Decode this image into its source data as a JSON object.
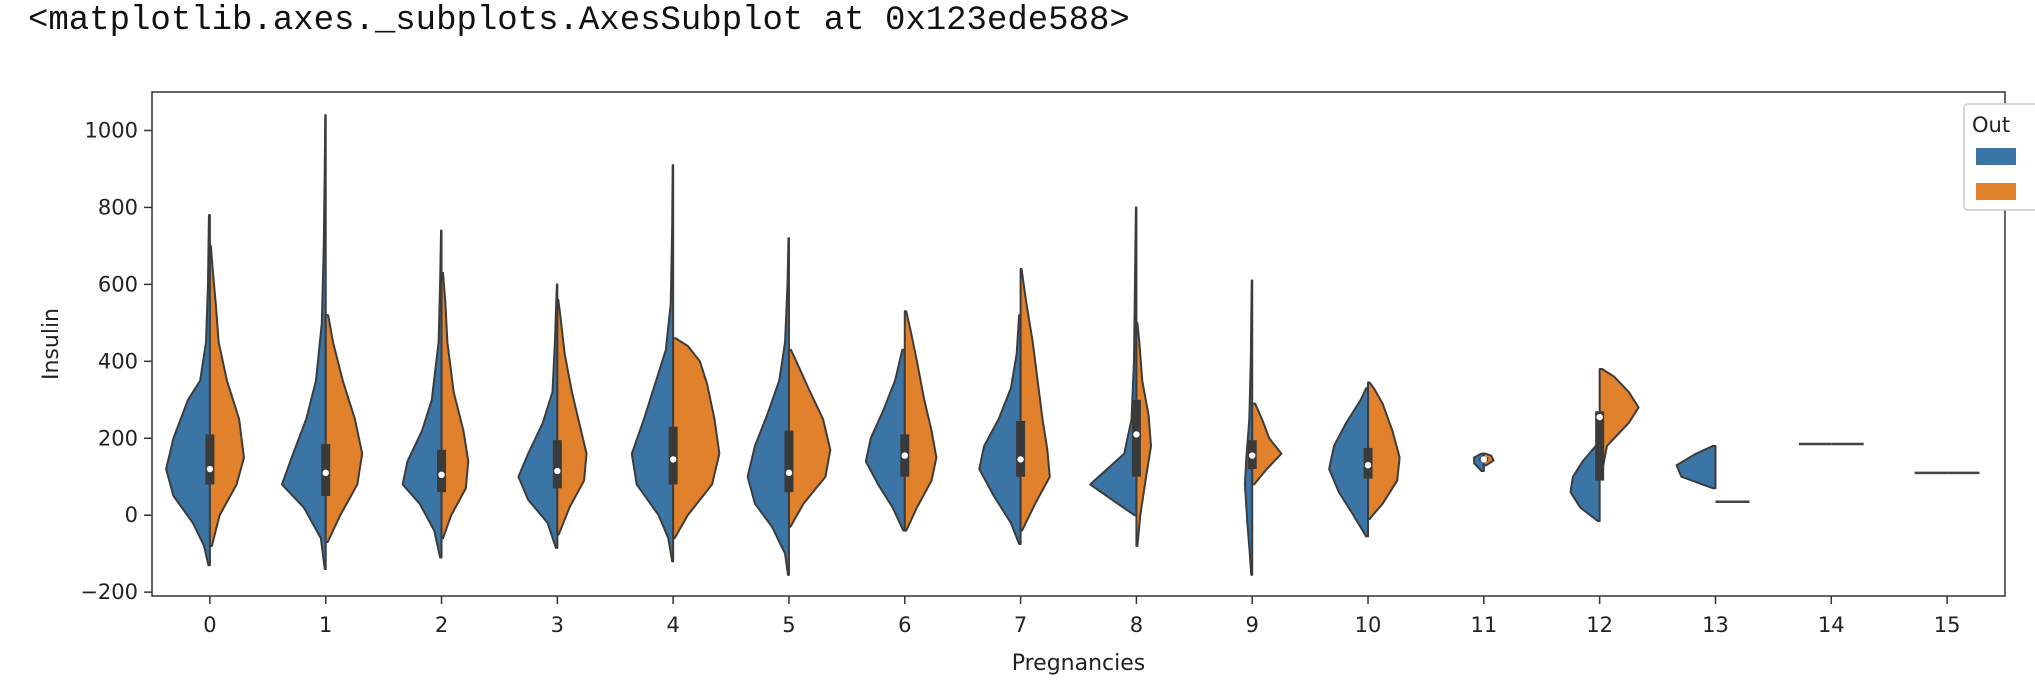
{
  "repr_text": "<matplotlib.axes._subplots.AxesSubplot at 0x123ede588>",
  "chart_data": {
    "type": "violin",
    "split": true,
    "xlabel": "Pregnancies",
    "ylabel": "Insulin",
    "ylim": [
      -210,
      1100
    ],
    "yticks": [
      -200,
      0,
      200,
      400,
      600,
      800,
      1000
    ],
    "categories": [
      "0",
      "1",
      "2",
      "3",
      "4",
      "5",
      "6",
      "7",
      "8",
      "9",
      "10",
      "11",
      "12",
      "13",
      "14",
      "15"
    ],
    "legend": {
      "title": "Out",
      "position": "top-right",
      "entries": [
        "",
        ""
      ]
    },
    "series_colors": [
      "#3a75a6",
      "#e1812c"
    ],
    "violins": [
      {
        "x": "0",
        "blue": {
          "profile": [
            [
              -130,
              0.03
            ],
            [
              -80,
              0.12
            ],
            [
              -20,
              0.35
            ],
            [
              50,
              0.75
            ],
            [
              120,
              0.9
            ],
            [
              200,
              0.75
            ],
            [
              300,
              0.45
            ],
            [
              350,
              0.2
            ],
            [
              450,
              0.08
            ],
            [
              600,
              0.04
            ],
            [
              780,
              0.02
            ]
          ]
        },
        "orange": {
          "profile": [
            [
              -80,
              0.04
            ],
            [
              0,
              0.2
            ],
            [
              80,
              0.55
            ],
            [
              150,
              0.7
            ],
            [
              250,
              0.6
            ],
            [
              350,
              0.35
            ],
            [
              450,
              0.18
            ],
            [
              550,
              0.12
            ],
            [
              650,
              0.05
            ],
            [
              700,
              0.02
            ]
          ]
        },
        "box": {
          "q1": 80,
          "median": 120,
          "q3": 210
        }
      },
      {
        "x": "1",
        "blue": {
          "profile": [
            [
              -140,
              0.02
            ],
            [
              -60,
              0.1
            ],
            [
              20,
              0.45
            ],
            [
              80,
              0.9
            ],
            [
              150,
              0.7
            ],
            [
              250,
              0.4
            ],
            [
              350,
              0.2
            ],
            [
              500,
              0.08
            ],
            [
              700,
              0.04
            ],
            [
              900,
              0.02
            ],
            [
              1040,
              0.01
            ]
          ]
        },
        "orange": {
          "profile": [
            [
              -70,
              0.04
            ],
            [
              0,
              0.3
            ],
            [
              80,
              0.65
            ],
            [
              160,
              0.75
            ],
            [
              250,
              0.6
            ],
            [
              350,
              0.35
            ],
            [
              450,
              0.15
            ],
            [
              520,
              0.05
            ]
          ]
        },
        "box": {
          "q1": 50,
          "median": 110,
          "q3": 185
        }
      },
      {
        "x": "2",
        "blue": {
          "profile": [
            [
              -110,
              0.03
            ],
            [
              -40,
              0.15
            ],
            [
              30,
              0.45
            ],
            [
              80,
              0.8
            ],
            [
              140,
              0.7
            ],
            [
              220,
              0.4
            ],
            [
              300,
              0.2
            ],
            [
              450,
              0.06
            ],
            [
              600,
              0.03
            ],
            [
              740,
              0.01
            ]
          ]
        },
        "orange": {
          "profile": [
            [
              -60,
              0.03
            ],
            [
              0,
              0.2
            ],
            [
              70,
              0.5
            ],
            [
              140,
              0.55
            ],
            [
              220,
              0.45
            ],
            [
              320,
              0.25
            ],
            [
              450,
              0.12
            ],
            [
              550,
              0.08
            ],
            [
              630,
              0.03
            ]
          ]
        },
        "box": {
          "q1": 60,
          "median": 105,
          "q3": 170
        }
      },
      {
        "x": "3",
        "blue": {
          "profile": [
            [
              -85,
              0.03
            ],
            [
              -20,
              0.2
            ],
            [
              40,
              0.6
            ],
            [
              100,
              0.8
            ],
            [
              160,
              0.6
            ],
            [
              240,
              0.3
            ],
            [
              320,
              0.1
            ],
            [
              450,
              0.05
            ],
            [
              600,
              0.01
            ]
          ]
        },
        "orange": {
          "profile": [
            [
              -50,
              0.03
            ],
            [
              20,
              0.25
            ],
            [
              90,
              0.55
            ],
            [
              160,
              0.6
            ],
            [
              240,
              0.45
            ],
            [
              320,
              0.3
            ],
            [
              420,
              0.15
            ],
            [
              520,
              0.06
            ],
            [
              560,
              0.02
            ]
          ]
        },
        "box": {
          "q1": 70,
          "median": 115,
          "q3": 195
        }
      },
      {
        "x": "4",
        "blue": {
          "profile": [
            [
              -120,
              0.02
            ],
            [
              -60,
              0.1
            ],
            [
              0,
              0.3
            ],
            [
              80,
              0.75
            ],
            [
              160,
              0.85
            ],
            [
              250,
              0.6
            ],
            [
              350,
              0.35
            ],
            [
              430,
              0.15
            ],
            [
              550,
              0.05
            ],
            [
              750,
              0.02
            ],
            [
              910,
              0.01
            ]
          ]
        },
        "orange": {
          "profile": [
            [
              -60,
              0.03
            ],
            [
              0,
              0.3
            ],
            [
              80,
              0.8
            ],
            [
              160,
              0.95
            ],
            [
              250,
              0.85
            ],
            [
              340,
              0.7
            ],
            [
              400,
              0.55
            ],
            [
              440,
              0.3
            ],
            [
              460,
              0.05
            ]
          ]
        },
        "box": {
          "q1": 80,
          "median": 145,
          "q3": 230
        }
      },
      {
        "x": "5",
        "blue": {
          "profile": [
            [
              -155,
              0.02
            ],
            [
              -100,
              0.08
            ],
            [
              -30,
              0.35
            ],
            [
              30,
              0.7
            ],
            [
              100,
              0.85
            ],
            [
              180,
              0.7
            ],
            [
              260,
              0.45
            ],
            [
              350,
              0.2
            ],
            [
              450,
              0.08
            ],
            [
              600,
              0.03
            ],
            [
              720,
              0.01
            ]
          ]
        },
        "orange": {
          "profile": [
            [
              -30,
              0.03
            ],
            [
              30,
              0.3
            ],
            [
              100,
              0.75
            ],
            [
              170,
              0.85
            ],
            [
              250,
              0.7
            ],
            [
              330,
              0.4
            ],
            [
              400,
              0.15
            ],
            [
              430,
              0.04
            ]
          ]
        },
        "box": {
          "q1": 60,
          "median": 110,
          "q3": 220
        }
      },
      {
        "x": "6",
        "blue": {
          "profile": [
            [
              -40,
              0.03
            ],
            [
              20,
              0.25
            ],
            [
              80,
              0.55
            ],
            [
              140,
              0.8
            ],
            [
              200,
              0.7
            ],
            [
              270,
              0.45
            ],
            [
              350,
              0.2
            ],
            [
              430,
              0.05
            ]
          ]
        },
        "orange": {
          "profile": [
            [
              -40,
              0.03
            ],
            [
              20,
              0.25
            ],
            [
              90,
              0.55
            ],
            [
              150,
              0.65
            ],
            [
              220,
              0.55
            ],
            [
              300,
              0.4
            ],
            [
              400,
              0.25
            ],
            [
              480,
              0.12
            ],
            [
              530,
              0.03
            ]
          ]
        },
        "box": {
          "q1": 100,
          "median": 155,
          "q3": 210
        }
      },
      {
        "x": "7",
        "blue": {
          "profile": [
            [
              -75,
              0.03
            ],
            [
              -20,
              0.2
            ],
            [
              50,
              0.55
            ],
            [
              120,
              0.85
            ],
            [
              180,
              0.75
            ],
            [
              250,
              0.45
            ],
            [
              330,
              0.2
            ],
            [
              420,
              0.08
            ],
            [
              520,
              0.03
            ]
          ]
        },
        "orange": {
          "profile": [
            [
              -40,
              0.03
            ],
            [
              30,
              0.3
            ],
            [
              100,
              0.6
            ],
            [
              170,
              0.55
            ],
            [
              250,
              0.45
            ],
            [
              350,
              0.35
            ],
            [
              450,
              0.25
            ],
            [
              550,
              0.12
            ],
            [
              640,
              0.02
            ]
          ]
        },
        "box": {
          "q1": 100,
          "median": 145,
          "q3": 245
        }
      },
      {
        "x": "8",
        "blue": {
          "profile": [
            [
              0,
              0.04
            ],
            [
              40,
              0.5
            ],
            [
              80,
              0.95
            ],
            [
              120,
              0.6
            ],
            [
              160,
              0.25
            ],
            [
              250,
              0.1
            ],
            [
              400,
              0.05
            ],
            [
              600,
              0.03
            ],
            [
              800,
              0.01
            ]
          ]
        },
        "orange": {
          "profile": [
            [
              -80,
              0.02
            ],
            [
              0,
              0.08
            ],
            [
              100,
              0.2
            ],
            [
              180,
              0.3
            ],
            [
              260,
              0.25
            ],
            [
              350,
              0.12
            ],
            [
              450,
              0.06
            ],
            [
              500,
              0.02
            ]
          ]
        },
        "box": {
          "q1": 100,
          "median": 210,
          "q3": 300
        }
      },
      {
        "x": "9",
        "blue": {
          "profile": [
            [
              -155,
              0.02
            ],
            [
              -100,
              0.05
            ],
            [
              -20,
              0.1
            ],
            [
              80,
              0.15
            ],
            [
              150,
              0.12
            ],
            [
              250,
              0.06
            ],
            [
              400,
              0.03
            ],
            [
              610,
              0.01
            ]
          ]
        },
        "orange": {
          "profile": [
            [
              80,
              0.04
            ],
            [
              120,
              0.3
            ],
            [
              160,
              0.6
            ],
            [
              200,
              0.35
            ],
            [
              250,
              0.2
            ],
            [
              290,
              0.06
            ]
          ]
        },
        "box": {
          "q1": 120,
          "median": 155,
          "q3": 195
        }
      },
      {
        "x": "10",
        "blue": {
          "profile": [
            [
              -55,
              0.04
            ],
            [
              0,
              0.3
            ],
            [
              60,
              0.6
            ],
            [
              120,
              0.8
            ],
            [
              180,
              0.7
            ],
            [
              240,
              0.45
            ],
            [
              300,
              0.15
            ],
            [
              330,
              0.04
            ]
          ]
        },
        "orange": {
          "profile": [
            [
              -10,
              0.03
            ],
            [
              30,
              0.3
            ],
            [
              90,
              0.6
            ],
            [
              150,
              0.65
            ],
            [
              220,
              0.5
            ],
            [
              290,
              0.3
            ],
            [
              330,
              0.12
            ],
            [
              345,
              0.03
            ]
          ]
        },
        "box": {
          "q1": 95,
          "median": 130,
          "q3": 175
        }
      },
      {
        "x": "11",
        "blue": {
          "profile": [
            [
              115,
              0.05
            ],
            [
              135,
              0.2
            ],
            [
              150,
              0.2
            ],
            [
              160,
              0.05
            ]
          ]
        },
        "orange": {
          "profile": [
            [
              130,
              0.05
            ],
            [
              142,
              0.2
            ],
            [
              155,
              0.15
            ],
            [
              160,
              0.03
            ]
          ]
        },
        "box": {
          "q1": 140,
          "median": 145,
          "q3": 150
        }
      },
      {
        "x": "12",
        "blue": {
          "profile": [
            [
              -15,
              0.04
            ],
            [
              20,
              0.4
            ],
            [
              60,
              0.6
            ],
            [
              100,
              0.55
            ],
            [
              140,
              0.35
            ],
            [
              180,
              0.08
            ]
          ]
        },
        "orange": {
          "profile": [
            [
              100,
              0.03
            ],
            [
              180,
              0.15
            ],
            [
              240,
              0.6
            ],
            [
              280,
              0.8
            ],
            [
              320,
              0.6
            ],
            [
              360,
              0.3
            ],
            [
              380,
              0.05
            ]
          ]
        },
        "box": {
          "q1": 90,
          "median": 255,
          "q3": 270
        }
      },
      {
        "x": "13",
        "blue": {
          "profile": [
            [
              70,
              0.05
            ],
            [
              100,
              0.7
            ],
            [
              130,
              0.8
            ],
            [
              160,
              0.4
            ],
            [
              180,
              0.05
            ]
          ]
        },
        "orange": {
          "profile": [
            [
              35,
              0.0
            ]
          ]
        },
        "box": null
      },
      {
        "x": "14",
        "blue": {
          "profile": [
            [
              185,
              0.0
            ]
          ]
        },
        "orange": {
          "profile": [
            [
              185,
              0.0
            ]
          ]
        },
        "box": null
      },
      {
        "x": "15",
        "blue": {
          "profile": [
            [
              110,
              0.0
            ]
          ]
        },
        "orange": {
          "profile": [
            [
              110,
              0.0
            ]
          ]
        },
        "box": null
      }
    ]
  }
}
